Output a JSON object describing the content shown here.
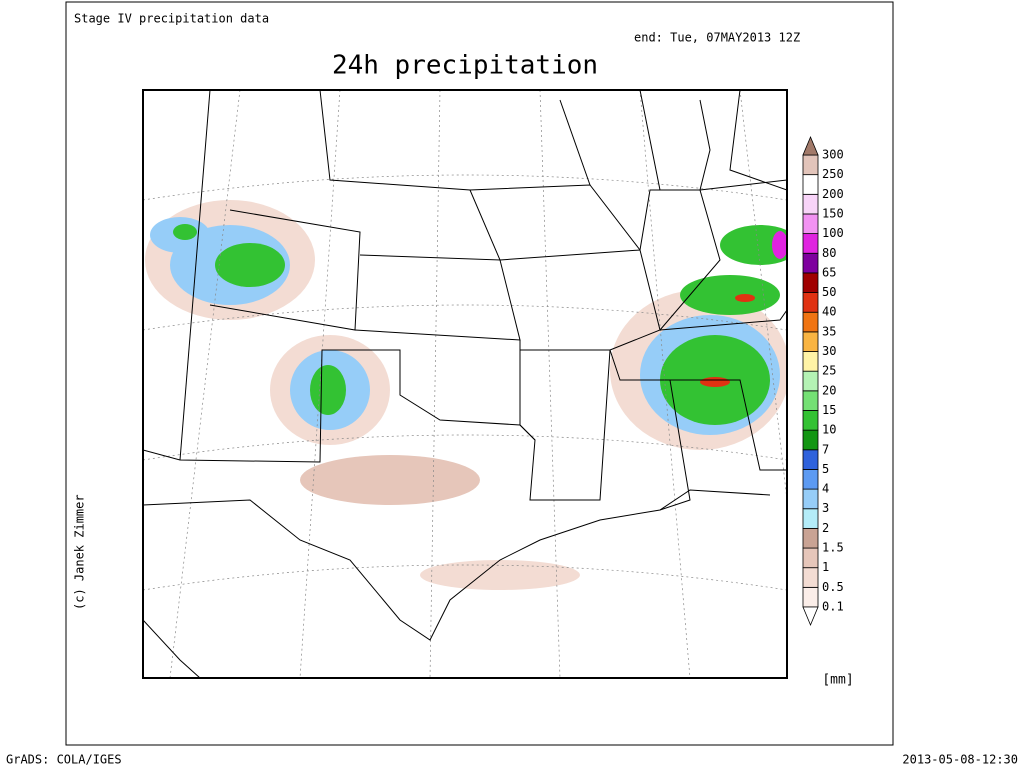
{
  "header": {
    "source": "Stage IV precipitation data",
    "end": "end: Tue, 07MAY2013 12Z",
    "title": "24h precipitation"
  },
  "credit": "(c) Janek Zimmer",
  "legend": {
    "levels": [
      0.1,
      0.5,
      1,
      1.5,
      2,
      3,
      4,
      5,
      7,
      10,
      15,
      20,
      25,
      30,
      35,
      40,
      50,
      65,
      80,
      100,
      150,
      200,
      250,
      300
    ],
    "colors": [
      "#fbeee9",
      "#f3dcd3",
      "#e6c6ba",
      "#c9a394",
      "#b4ecf8",
      "#96cdf8",
      "#5c9af2",
      "#2f62dc",
      "#139613",
      "#33c233",
      "#74e074",
      "#b4f2b4",
      "#fff3a6",
      "#f9b442",
      "#f07412",
      "#e03212",
      "#a00000",
      "#7e009e",
      "#e024e0",
      "#f292f2",
      "#f8d4f8",
      "#ffffff",
      "#e2c4ba"
    ],
    "under_color": "#ffffff",
    "over_color": "#a27a6a",
    "unit": "[mm]"
  },
  "footer": {
    "left": "GrADS: COLA/IGES",
    "right": "2013-05-08-12:30"
  }
}
